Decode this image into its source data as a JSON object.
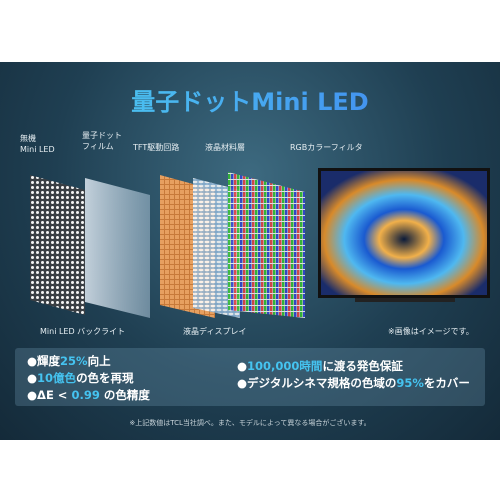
{
  "title": "量子ドットMini LED",
  "layer_labels": [
    [
      "無機",
      "Mini LED"
    ],
    [
      "量子ドット",
      "フィルム"
    ],
    [
      "TFT駆動回路"
    ],
    [
      "液晶材料層"
    ],
    [
      "RGBカラーフィルタ"
    ]
  ],
  "captions": [
    "Mini LED バックライト",
    "液晶ディスプレイ",
    "※画像はイメージです。"
  ],
  "features_left": [
    [
      {
        "text": "輝度"
      },
      {
        "text": "25%",
        "accent": true
      },
      {
        "text": "向上"
      }
    ],
    [
      {
        "text": "10億色",
        "accent": true
      },
      {
        "text": "の色を再現"
      }
    ],
    [
      {
        "text": "ΔE < "
      },
      {
        "text": "0.99",
        "accent": true
      },
      {
        "text": " の色精度"
      }
    ]
  ],
  "features_right": [
    [
      {
        "text": "100,000時間",
        "accent": true
      },
      {
        "text": "に渡る発色保証"
      }
    ],
    [
      {
        "text": "デジタルシネマ規格の色域の"
      },
      {
        "text": "95%",
        "accent": true
      },
      {
        "text": "をカバー"
      }
    ]
  ],
  "footnote": "※上記数値はTCL当社調べ。また、モデルによって異なる場合がございます。"
}
